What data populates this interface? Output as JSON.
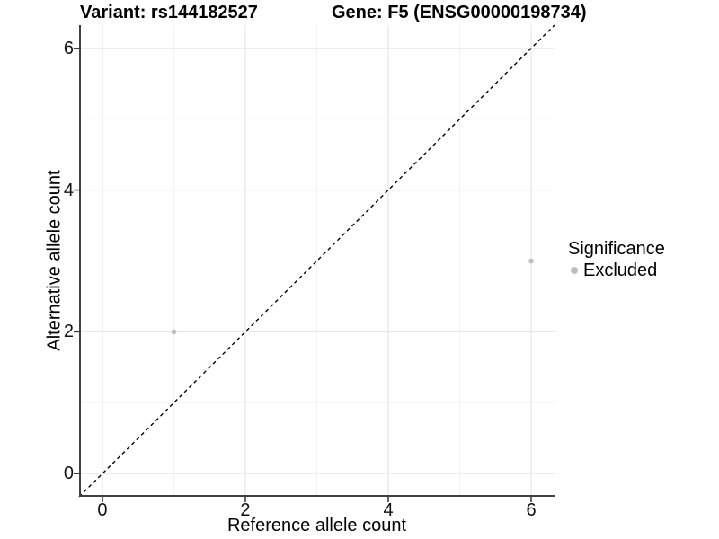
{
  "chart_data": {
    "type": "scatter",
    "titles": {
      "variant": "Variant: rs144182527",
      "gene": "Gene: F5 (ENSG00000198734)"
    },
    "xlabel": "Reference allele count",
    "ylabel": "Alternative allele count",
    "axes": {
      "xlim": [
        -0.327,
        6.327
      ],
      "ylim": [
        -0.327,
        6.327
      ],
      "x_ticks": [
        0,
        2,
        4,
        6
      ],
      "y_ticks": [
        0,
        2,
        4,
        6
      ],
      "x_minor_ticks": [
        1,
        3,
        5
      ],
      "y_minor_ticks": [
        1,
        3,
        5
      ]
    },
    "grid": "on",
    "identity_line": {
      "style": "dashed",
      "equation": "y = x",
      "color": "#000000"
    },
    "series": [
      {
        "name": "Excluded",
        "points": [
          [
            1,
            2
          ],
          [
            6,
            3
          ]
        ],
        "color": "#bdbdbd",
        "marker_radius": 2.8
      }
    ],
    "legend": {
      "title": "Significance",
      "position": "right",
      "entries": [
        {
          "label": "Excluded",
          "color": "#bdbdbd"
        }
      ]
    },
    "style": {
      "axis_color": "#404040",
      "tick_color": "#333333",
      "grid_major_color": "#e7e7e7",
      "grid_minor_color": "#f2f2f2",
      "background": "#ffffff"
    }
  }
}
